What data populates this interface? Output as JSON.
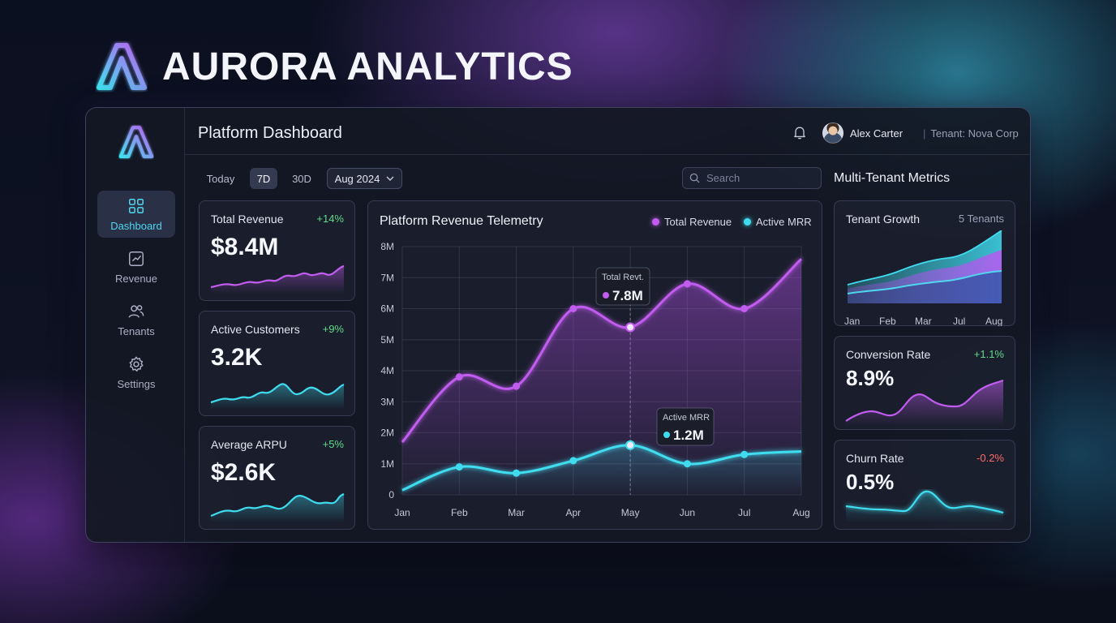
{
  "brand": {
    "name": "AURORA ANALYTICS"
  },
  "sidebar": {
    "items": [
      {
        "label": "Dashboard",
        "icon": "dashboard-icon",
        "active": true
      },
      {
        "label": "Revenue",
        "icon": "chart-icon",
        "active": false
      },
      {
        "label": "Tenants",
        "icon": "users-icon",
        "active": false
      },
      {
        "label": "Settings",
        "icon": "gear-icon",
        "active": false
      }
    ]
  },
  "header": {
    "title": "Platform Dashboard",
    "user_name": "Alex Carter",
    "tenant": "Tenant: Nova Corp"
  },
  "filters": {
    "today": "Today",
    "d7": "7D",
    "d30": "30D",
    "month": "Aug 2024"
  },
  "search": {
    "placeholder": "Search"
  },
  "kpis": [
    {
      "label": "Total Revenue",
      "value": "$8.4M",
      "delta": "+14%"
    },
    {
      "label": "Active Customers",
      "value": "3.2K",
      "delta": "+9%"
    },
    {
      "label": "Average ARPU",
      "value": "$2.6K",
      "delta": "+5%"
    }
  ],
  "main_chart": {
    "title": "Platform Revenue Telemetry",
    "legend": [
      "Total Revenue",
      "Active MRR"
    ],
    "tooltip_revenue": {
      "label": "Total Revt.",
      "value": "7.8M"
    },
    "tooltip_mrr": {
      "label": "Active MRR",
      "value": "1.2M"
    }
  },
  "right_panel": {
    "title": "Multi-Tenant Metrics",
    "tenant_growth": {
      "label": "Tenant Growth",
      "count": "5 Tenants",
      "months": [
        "Jan",
        "Feb",
        "Mar",
        "Jul",
        "Aug"
      ]
    },
    "conversion": {
      "label": "Conversion Rate",
      "value": "8.9%",
      "delta": "+1.1%"
    },
    "churn": {
      "label": "Churn Rate",
      "value": "0.5%",
      "delta": "-0.2%"
    }
  },
  "colors": {
    "revenue": "#c25cf0",
    "mrr": "#3fdcef",
    "accent": "#4fd7ef"
  },
  "chart_data": {
    "type": "line",
    "x": [
      "Jan",
      "Feb",
      "Mar",
      "Apr",
      "May",
      "Jun",
      "Jul",
      "Aug"
    ],
    "yticks": [
      "0",
      "1M",
      "2M",
      "3M",
      "4M",
      "5M",
      "6M",
      "7M",
      "8M"
    ],
    "ylim": [
      0,
      8
    ],
    "series": [
      {
        "name": "Total Revenue",
        "values": [
          1.7,
          3.8,
          3.5,
          6.0,
          5.4,
          6.8,
          6.0,
          7.6
        ]
      },
      {
        "name": "Active MRR",
        "values": [
          0.15,
          0.9,
          0.7,
          1.1,
          1.6,
          1.0,
          1.3,
          1.4
        ]
      }
    ],
    "grid": true
  }
}
